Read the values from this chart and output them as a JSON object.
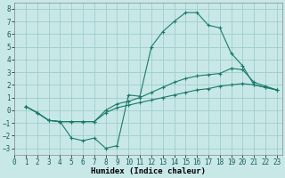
{
  "xlabel": "Humidex (Indice chaleur)",
  "bg_color": "#c8e8e8",
  "grid_color": "#a0cccc",
  "line_color": "#1a7a6a",
  "marker": "+",
  "xlim": [
    0,
    23.5
  ],
  "ylim": [
    -3.5,
    8.5
  ],
  "xticks": [
    0,
    1,
    2,
    3,
    4,
    5,
    6,
    7,
    8,
    9,
    10,
    11,
    12,
    13,
    14,
    15,
    16,
    17,
    18,
    19,
    20,
    21,
    22,
    23
  ],
  "yticks": [
    -3,
    -2,
    -1,
    0,
    1,
    2,
    3,
    4,
    5,
    6,
    7,
    8
  ],
  "line1_x": [
    1,
    2,
    3,
    4,
    5,
    6,
    7,
    8,
    9,
    10,
    11,
    12,
    13,
    14,
    15,
    16,
    17,
    18,
    19,
    20,
    21,
    22,
    23
  ],
  "line1_y": [
    0.3,
    -0.2,
    -0.8,
    -0.9,
    -2.2,
    -2.4,
    -2.2,
    -3.0,
    -2.8,
    1.2,
    1.1,
    5.0,
    6.2,
    7.0,
    7.7,
    7.7,
    6.7,
    6.5,
    4.5,
    3.5,
    2.0,
    1.8,
    1.6
  ],
  "line2_x": [
    1,
    2,
    3,
    4,
    5,
    6,
    7,
    8,
    9,
    10,
    11,
    12,
    13,
    14,
    15,
    16,
    17,
    18,
    19,
    20,
    21,
    22,
    23
  ],
  "line2_y": [
    0.3,
    -0.2,
    -0.8,
    -0.9,
    -0.9,
    -0.9,
    -0.9,
    -0.0,
    0.5,
    0.7,
    1.0,
    1.4,
    1.8,
    2.2,
    2.5,
    2.7,
    2.8,
    2.9,
    3.3,
    3.2,
    2.2,
    1.9,
    1.6
  ],
  "line3_x": [
    1,
    2,
    3,
    4,
    5,
    6,
    7,
    8,
    9,
    10,
    11,
    12,
    13,
    14,
    15,
    16,
    17,
    18,
    19,
    20,
    21,
    22,
    23
  ],
  "line3_y": [
    0.3,
    -0.2,
    -0.8,
    -0.9,
    -0.9,
    -0.9,
    -0.9,
    -0.2,
    0.2,
    0.4,
    0.6,
    0.8,
    1.0,
    1.2,
    1.4,
    1.6,
    1.7,
    1.9,
    2.0,
    2.1,
    2.0,
    1.8,
    1.6
  ]
}
